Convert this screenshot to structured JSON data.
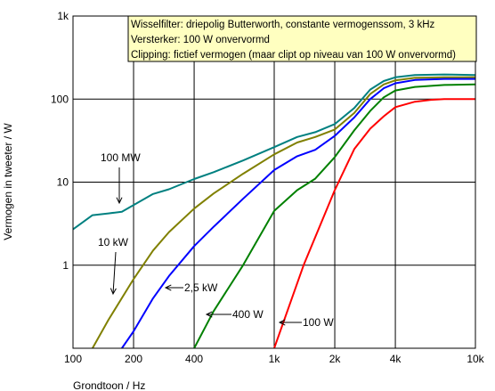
{
  "chart_data": {
    "type": "line",
    "xlabel": "Grondtoon / Hz",
    "ylabel": "Vermogen in tweeter / W",
    "xscale": "log",
    "yscale": "log",
    "xlim": [
      100,
      10000
    ],
    "ylim": [
      0.1,
      1000
    ],
    "grid": true,
    "x_ticks": [
      {
        "value": 100,
        "label": "100"
      },
      {
        "value": 200,
        "label": "200"
      },
      {
        "value": 400,
        "label": "400"
      },
      {
        "value": 1000,
        "label": "1k"
      },
      {
        "value": 2000,
        "label": "2k"
      },
      {
        "value": 4000,
        "label": "4k"
      },
      {
        "value": 10000,
        "label": "10k"
      }
    ],
    "y_ticks": [
      {
        "value": 1,
        "label": "1"
      },
      {
        "value": 10,
        "label": "10"
      },
      {
        "value": 100,
        "label": "100"
      },
      {
        "value": 1000,
        "label": "1k"
      }
    ],
    "info_box": {
      "lines": [
        "Wisselfilter: driepolig Butterworth, constante vermogenssom, 3 kHz",
        "Versterker: 100 W onvervormd",
        "Clipping: fictief vermogen (maar clipt op niveau van 100 W onvervormd)"
      ],
      "background": "#ffffc0"
    },
    "series": [
      {
        "name": "100 MW",
        "color": "#008080",
        "x": [
          100,
          125,
          150,
          175,
          200,
          250,
          300,
          400,
          500,
          700,
          1000,
          1300,
          1600,
          2000,
          2500,
          3000,
          3500,
          4000,
          5000,
          7000,
          10000
        ],
        "y": [
          2.7,
          4.0,
          4.2,
          4.4,
          5.3,
          7.2,
          8.2,
          10.9,
          13.2,
          18.2,
          26.4,
          35,
          40,
          50,
          78,
          130,
          165,
          183,
          195,
          198,
          195
        ]
      },
      {
        "name": "10 kW",
        "color": "#808000",
        "x": [
          125,
          150,
          200,
          250,
          300,
          400,
          500,
          700,
          1000,
          1300,
          1600,
          2000,
          2500,
          3000,
          3500,
          4000,
          5000,
          7000,
          10000
        ],
        "y": [
          0.1,
          0.22,
          0.68,
          1.5,
          2.5,
          4.8,
          7.3,
          12.6,
          21.6,
          30,
          35,
          43,
          68,
          115,
          150,
          168,
          180,
          183,
          183
        ]
      },
      {
        "name": "2,5 kW",
        "color": "#0000ff",
        "x": [
          175,
          200,
          250,
          300,
          400,
          500,
          700,
          1000,
          1300,
          1600,
          2000,
          2500,
          3000,
          3500,
          4000,
          5000,
          7000,
          10000
        ],
        "y": [
          0.1,
          0.16,
          0.4,
          0.74,
          1.7,
          2.9,
          6.3,
          14,
          20.5,
          24.5,
          36,
          60,
          100,
          135,
          155,
          170,
          175,
          175
        ]
      },
      {
        "name": "400 W",
        "color": "#008000",
        "x": [
          400,
          500,
          700,
          1000,
          1300,
          1600,
          2000,
          2500,
          3000,
          3500,
          4000,
          5000,
          7000,
          10000
        ],
        "y": [
          0.1,
          0.28,
          1.0,
          4.5,
          8.0,
          11.0,
          20,
          42,
          72,
          105,
          127,
          140,
          148,
          150
        ]
      },
      {
        "name": "100 W",
        "color": "#ff0000",
        "x": [
          1000,
          1400,
          2000,
          2500,
          3000,
          3500,
          4000,
          5000,
          6000,
          7000,
          10000
        ],
        "y": [
          0.1,
          1.0,
          8.0,
          25,
          44,
          62,
          80,
          93,
          98,
          100,
          100
        ]
      }
    ]
  }
}
